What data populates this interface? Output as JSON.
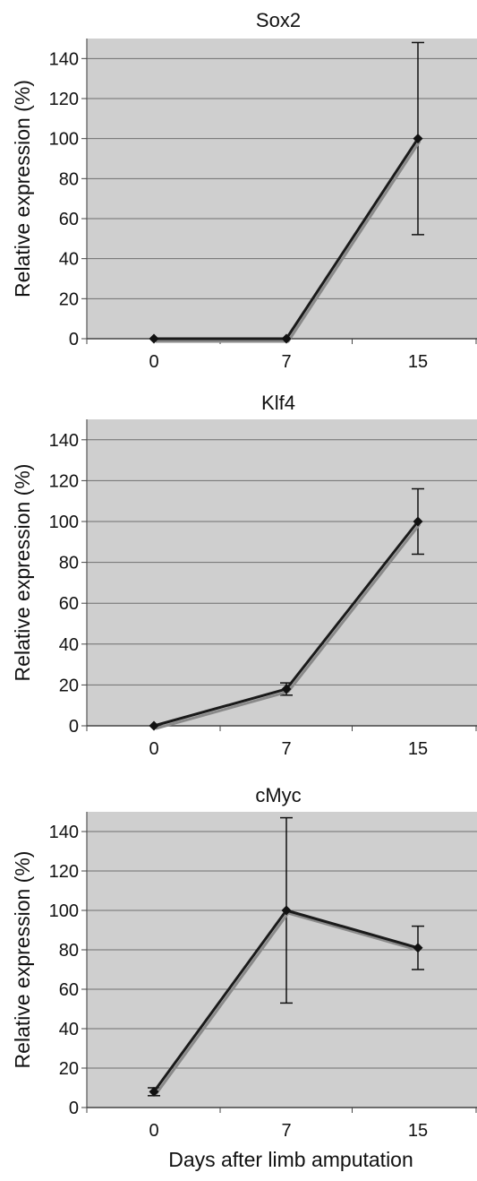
{
  "figure": {
    "x_axis_title": "Days after limb amputation",
    "y_axis_label": "Relative expression (%)"
  },
  "chart_data": [
    {
      "type": "line",
      "title": "Sox2",
      "xlabel": "",
      "ylabel": "Relative expression (%)",
      "categories": [
        "0",
        "7",
        "15"
      ],
      "values": [
        0,
        0,
        100
      ],
      "error": [
        0,
        0,
        48
      ],
      "ylim": [
        0,
        150
      ],
      "yticks": [
        0,
        20,
        40,
        60,
        80,
        100,
        120,
        140
      ],
      "grid": true,
      "line_color": "#1a1a1a",
      "background_color": "#cfcfcf"
    },
    {
      "type": "line",
      "title": "Klf4",
      "xlabel": "",
      "ylabel": "Relative expression (%)",
      "categories": [
        "0",
        "7",
        "15"
      ],
      "values": [
        0,
        18,
        100
      ],
      "error": [
        0,
        3,
        16
      ],
      "ylim": [
        0,
        150
      ],
      "yticks": [
        0,
        20,
        40,
        60,
        80,
        100,
        120,
        140
      ],
      "grid": true,
      "line_color": "#1a1a1a",
      "background_color": "#cfcfcf"
    },
    {
      "type": "line",
      "title": "cMyc",
      "xlabel": "Days after limb amputation",
      "ylabel": "Relative expression (%)",
      "categories": [
        "0",
        "7",
        "15"
      ],
      "values": [
        8,
        100,
        81
      ],
      "error": [
        2,
        47,
        11
      ],
      "ylim": [
        0,
        150
      ],
      "yticks": [
        0,
        20,
        40,
        60,
        80,
        100,
        120,
        140
      ],
      "grid": true,
      "line_color": "#1a1a1a",
      "background_color": "#cfcfcf"
    }
  ]
}
